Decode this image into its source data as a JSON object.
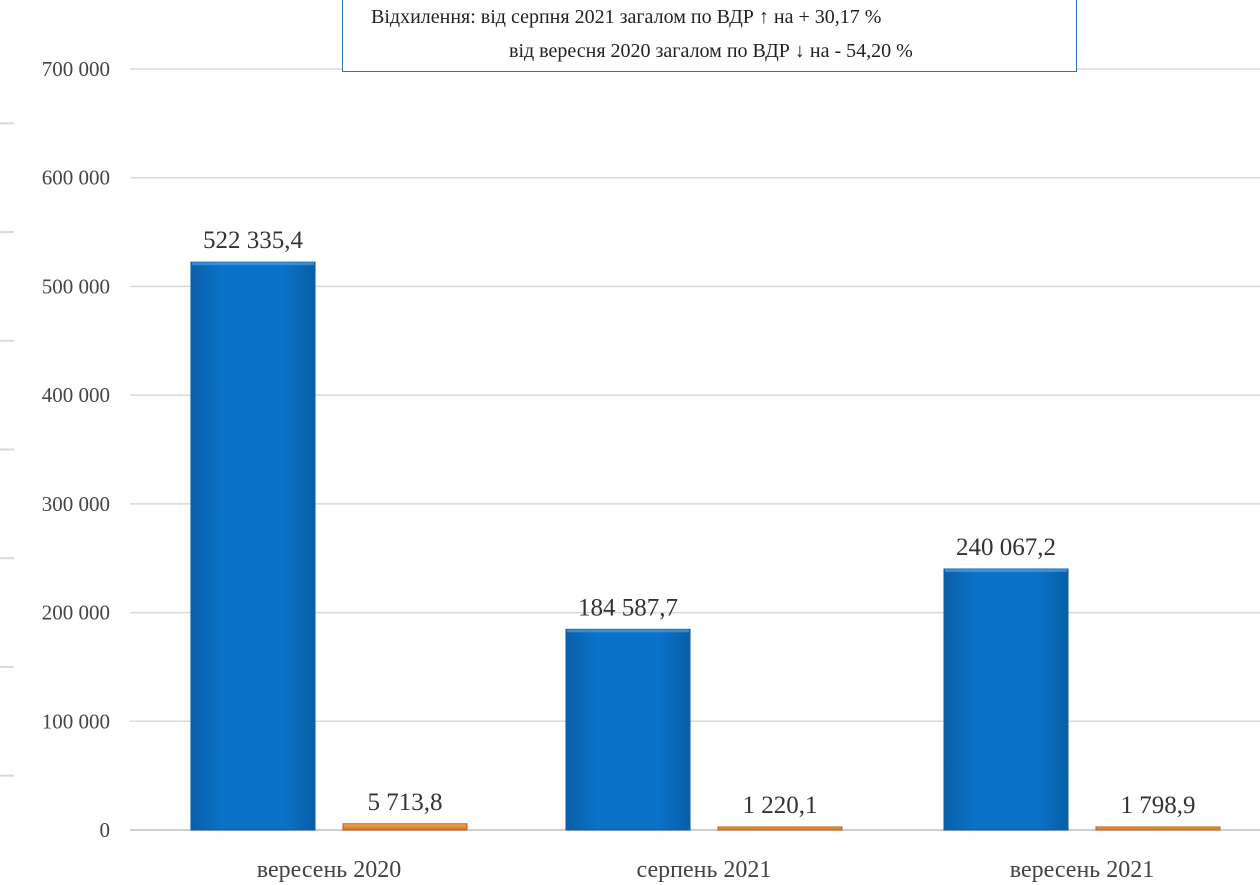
{
  "annotation": {
    "line1": "Відхилення: від серпня 2021 загалом по ВДР ↑ на + 30,17 %",
    "line2": "від вересня 2020 загалом по ВДР ↓ на - 54,20 %"
  },
  "colors": {
    "series1": "#0a72c8",
    "series2": "#ed8f33",
    "grid": "#d9d9d9"
  },
  "chart_data": {
    "type": "bar",
    "categories": [
      "вересень 2020",
      "серпень 2021",
      "вересень 2021"
    ],
    "series": [
      {
        "values": [
          522335.4,
          184587.7,
          240067.2
        ],
        "labels": [
          "522 335,4",
          "184 587,7",
          "240 067,2"
        ]
      },
      {
        "values": [
          5713.8,
          1220.1,
          1798.9
        ],
        "labels": [
          "5 713,8",
          "1 220,1",
          "1 798,9"
        ]
      }
    ],
    "ylim": [
      0,
      700000
    ],
    "yticks": [
      0,
      100000,
      200000,
      300000,
      400000,
      500000,
      600000,
      700000
    ],
    "ytick_labels": [
      "0",
      "100 000",
      "200 000",
      "300 000",
      "400 000",
      "500 000",
      "600 000",
      "700 000"
    ],
    "title": "",
    "xlabel": "",
    "ylabel": "",
    "grid": true,
    "legend": "none"
  }
}
